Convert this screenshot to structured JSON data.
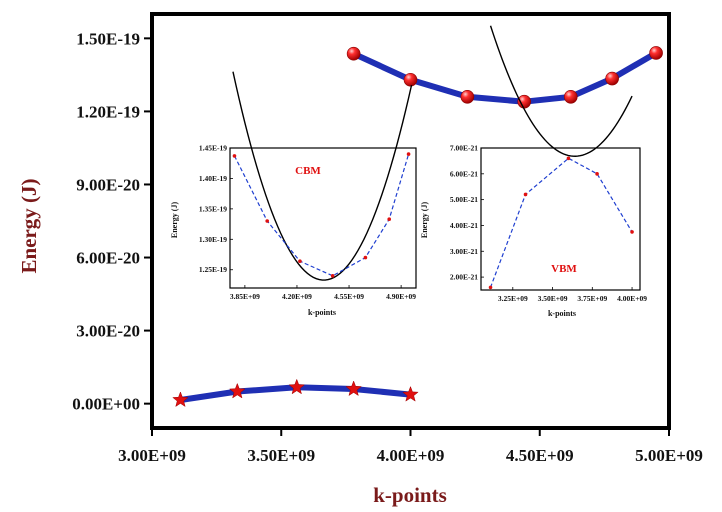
{
  "colors": {
    "title": "#7a1a1a",
    "line": "#1f2fb4",
    "marker": "#e01010",
    "fit": "#000000",
    "label": "#e01010",
    "dashed": "#1f3fd0"
  },
  "chart_data": [
    {
      "type": "line",
      "xlabel": "k-points",
      "ylabel": "Energy (J)",
      "xlim": [
        3000000000.0,
        5000000000.0
      ],
      "ylim": [
        -1e-20,
        1.6e-19
      ],
      "x_ticks": [
        "3.00E+09",
        "3.50E+09",
        "4.00E+09",
        "4.50E+09",
        "5.00E+09"
      ],
      "y_ticks": [
        "0.00E+00",
        "3.00E-20",
        "6.00E-20",
        "9.00E-20",
        "1.20E-19",
        "1.50E-19"
      ],
      "series": [
        {
          "name": "CBM",
          "marker": "sphere",
          "x": [
            3780000000.0,
            4000000000.0,
            4220000000.0,
            4440000000.0,
            4620000000.0,
            4780000000.0,
            4950000000.0
          ],
          "y": [
            1.437e-19,
            1.33e-19,
            1.26e-19,
            1.24e-19,
            1.26e-19,
            1.335e-19,
            1.44e-19
          ]
        },
        {
          "name": "VBM",
          "marker": "star",
          "x": [
            3110000000.0,
            3330000000.0,
            3560000000.0,
            3780000000.0,
            4000000000.0
          ],
          "y": [
            1.5e-21,
            5e-21,
            6.7e-21,
            6e-21,
            3.7e-21
          ]
        }
      ]
    },
    {
      "type": "line",
      "label": "CBM",
      "xlabel": "k-points",
      "ylabel": "Energy (J)",
      "xlim": [
        3750000000.0,
        5000000000.0
      ],
      "ylim": [
        1.22e-19,
        1.45e-19
      ],
      "x_ticks": [
        "3.85E+09",
        "4.20E+09",
        "4.55E+09",
        "4.90E+09"
      ],
      "y_ticks": [
        "1.25E-19",
        "1.30E-19",
        "1.35E-19",
        "1.40E-19",
        "1.45E-19"
      ],
      "series": [
        {
          "name": "data",
          "x": [
            3780000000.0,
            4000000000.0,
            4220000000.0,
            4440000000.0,
            4660000000.0,
            4820000000.0,
            4950000000.0
          ],
          "y": [
            1.437e-19,
            1.33e-19,
            1.264e-19,
            1.24e-19,
            1.27e-19,
            1.333e-19,
            1.44e-19
          ]
        },
        {
          "name": "dashed-link",
          "x": [
            3780000000.0,
            4000000000.0,
            4220000000.0,
            4440000000.0,
            4660000000.0,
            4820000000.0,
            4950000000.0
          ],
          "y": [
            1.437e-19,
            1.33e-19,
            1.264e-19,
            1.24e-19,
            1.27e-19,
            1.333e-19,
            1.44e-19
          ]
        },
        {
          "name": "parabolic-fit",
          "vertex_x": 4380000000.0,
          "vertex_y": 1.233e-19,
          "curvature": 9.2e-38,
          "x_range": [
            3770000000.0,
            4970000000.0
          ]
        }
      ]
    },
    {
      "type": "line",
      "label": "VBM",
      "xlabel": "k-points",
      "ylabel": "Energy (J)",
      "xlim": [
        3050000000.0,
        4050000000.0
      ],
      "ylim": [
        1.5e-21,
        7e-21
      ],
      "x_ticks": [
        "3.25E+09",
        "3.50E+09",
        "3.75E+09",
        "4.00E+09"
      ],
      "y_ticks": [
        "2.00E-21",
        "3.00E-21",
        "4.00E-21",
        "5.00E-21",
        "6.00E-21",
        "7.00E-21"
      ],
      "series": [
        {
          "name": "data",
          "x": [
            3110000000.0,
            3330000000.0,
            3600000000.0,
            3780000000.0,
            4000000000.0
          ],
          "y": [
            1.6e-21,
            5.2e-21,
            6.6e-21,
            6e-21,
            3.75e-21
          ]
        },
        {
          "name": "dashed-link",
          "x": [
            3110000000.0,
            3330000000.0,
            3600000000.0,
            3780000000.0,
            4000000000.0
          ],
          "y": [
            1.6e-21,
            5.2e-21,
            6.6e-21,
            6e-21,
            3.75e-21
          ]
        },
        {
          "name": "parabolic-fit",
          "vertex_x": 3640000000.0,
          "vertex_y": 6.68e-21,
          "curvature": 1.8e-38,
          "x_range": [
            3110000000.0,
            4000000000.0
          ]
        }
      ]
    }
  ]
}
